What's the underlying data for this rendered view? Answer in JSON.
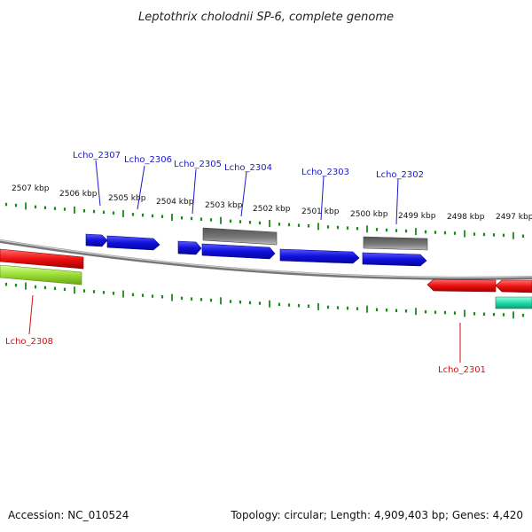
{
  "title": "Leptothrix cholodnii SP-6, complete genome",
  "accession": "Accession: NC_010524",
  "topology": "Topology: circular; Length: 4,909,403 bp; Genes: 4,420",
  "ruler_labels": [
    "2507 kbp",
    "2506 kbp",
    "2505 kbp",
    "2504 kbp",
    "2503 kbp",
    "2502 kbp",
    "2501 kbp",
    "2500 kbp",
    "2499 kbp",
    "2498 kbp",
    "2497 kbp"
  ],
  "top_genes": [
    "Lcho_2307",
    "Lcho_2306",
    "Lcho_2305",
    "Lcho_2304",
    "Lcho_2303",
    "Lcho_2302"
  ],
  "bottom_genes": [
    "Lcho_2308",
    "Lcho_2301"
  ],
  "colors": {
    "forward_cds": "#1010dd",
    "reverse_cds": "#ee1111",
    "rna": "#666666",
    "pseudo_green": "#99dd33",
    "teal": "#22ddaa",
    "tick": "#1a8a1a",
    "backbone": "#888888",
    "top_label": "#1a1ac8",
    "bottom_label": "#cc1111"
  }
}
